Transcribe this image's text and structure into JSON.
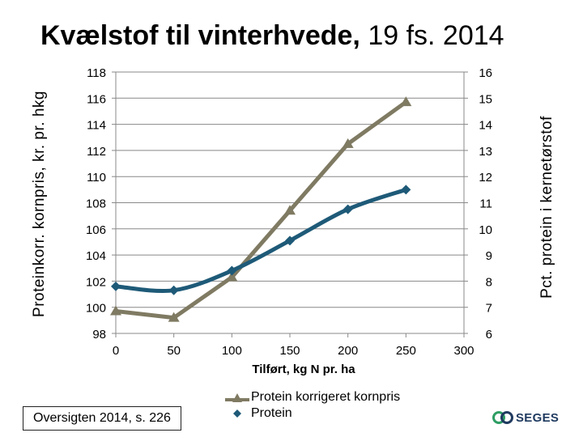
{
  "header": {
    "title_bold": "Kvælstof til vinterhvede,",
    "title_rest": "19 fs. 2014"
  },
  "footer": {
    "source": "Oversigten 2014, s. 226",
    "brand": "SEGES"
  },
  "colors": {
    "series_a": "#7f7a62",
    "series_b": "#1e5a78",
    "grid": "#888888",
    "brand": "#1f3a5f"
  },
  "chart_data": {
    "type": "line",
    "title": "Kvælstof til vinterhvede, 19 fs. 2014",
    "xlabel": "Tilført, kg N pr. ha",
    "ylabel_left": "Proteinkorr. kornpris, kr. pr. hkg",
    "ylabel_right": "Pct. protein i kernetørstof",
    "xlim": [
      0,
      300
    ],
    "x_ticks": [
      "0",
      "50",
      "100",
      "150",
      "200",
      "250",
      "300"
    ],
    "ylim_left": [
      98,
      118
    ],
    "y_ticks_left": [
      "98",
      "100",
      "102",
      "104",
      "106",
      "108",
      "110",
      "112",
      "114",
      "116",
      "118"
    ],
    "ylim_right": [
      6,
      16
    ],
    "y_ticks_right": [
      "6",
      "7",
      "8",
      "9",
      "10",
      "11",
      "12",
      "13",
      "14",
      "15",
      "16"
    ],
    "grid": true,
    "legend_position": "bottom-center",
    "series": [
      {
        "name": "Protein korrigeret kornpris",
        "axis": "left",
        "marker": "triangle",
        "x": [
          0,
          50,
          100,
          150,
          200,
          250
        ],
        "y": [
          99.7,
          99.2,
          102.3,
          107.4,
          112.5,
          115.7
        ]
      },
      {
        "name": "Protein",
        "axis": "right",
        "marker": "diamond",
        "x": [
          0,
          50,
          100,
          150,
          200,
          250
        ],
        "y": [
          7.8,
          7.65,
          8.4,
          9.55,
          10.75,
          11.5
        ]
      }
    ]
  }
}
